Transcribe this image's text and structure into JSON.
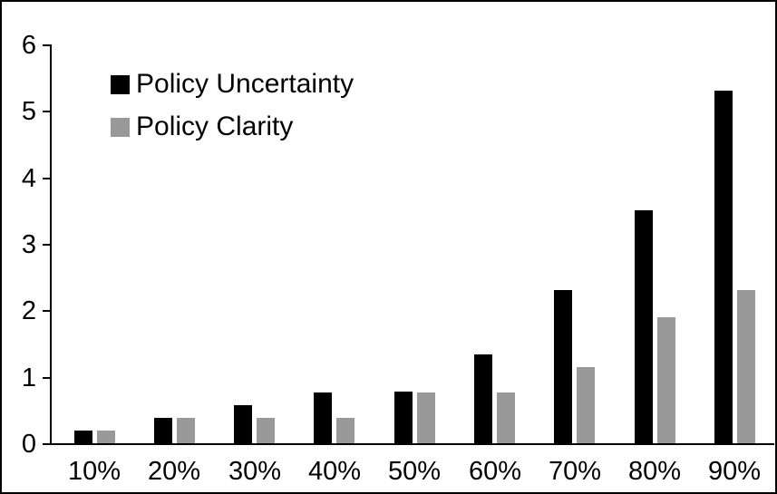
{
  "chart_data": {
    "type": "bar",
    "title": "",
    "xlabel": "",
    "ylabel": "",
    "categories": [
      "10%",
      "20%",
      "30%",
      "40%",
      "50%",
      "60%",
      "70%",
      "80%",
      "90%"
    ],
    "series": [
      {
        "name": "Policy Uncertainty",
        "color": "#000000",
        "values": [
          0.19,
          0.38,
          0.57,
          0.76,
          0.78,
          1.33,
          2.3,
          3.5,
          5.3
        ]
      },
      {
        "name": "Policy Clarity",
        "color": "#999999",
        "values": [
          0.19,
          0.38,
          0.38,
          0.38,
          0.77,
          0.77,
          1.15,
          1.9,
          2.3
        ]
      }
    ],
    "ylim": [
      0,
      6
    ],
    "yticks": [
      0,
      1,
      2,
      3,
      4,
      5,
      6
    ],
    "grid": false,
    "legend_position": "top-left-inside",
    "axis_color": "#000000",
    "background_color": "#ffffff"
  }
}
